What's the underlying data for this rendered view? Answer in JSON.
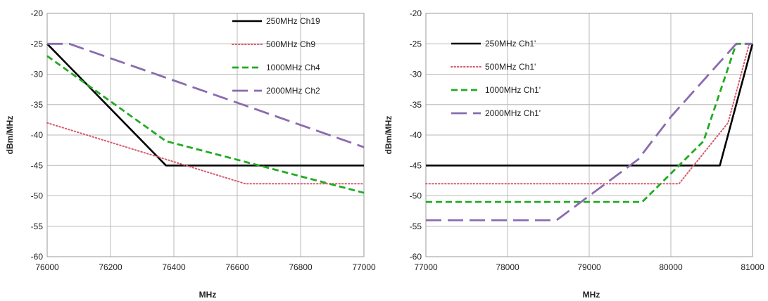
{
  "chart_data": [
    {
      "type": "line",
      "xlabel": "MHz",
      "ylabel": "dBm/MHz",
      "xlim": [
        76000,
        77000
      ],
      "ylim": [
        -60,
        -20
      ],
      "xticks": [
        76000,
        76200,
        76400,
        76600,
        76800,
        77000
      ],
      "yticks": [
        -20,
        -25,
        -30,
        -35,
        -40,
        -45,
        -50,
        -55,
        -60
      ],
      "grid": true,
      "legend_position": "top-right",
      "series": [
        {
          "name": "250MHz Ch19",
          "color": "#000000",
          "style": "solid",
          "points": [
            [
              76000,
              -25
            ],
            [
              76375,
              -45
            ],
            [
              77000,
              -45
            ]
          ]
        },
        {
          "name": "500MHz Ch9",
          "color": "#d8586a",
          "style": "dotted",
          "points": [
            [
              76000,
              -38
            ],
            [
              76375,
              -44
            ],
            [
              76625,
              -48
            ],
            [
              77000,
              -48
            ]
          ]
        },
        {
          "name": "1000MHz Ch4",
          "color": "#22aa22",
          "style": "dashed",
          "points": [
            [
              76000,
              -27
            ],
            [
              76375,
              -41
            ],
            [
              77000,
              -49.5
            ]
          ]
        },
        {
          "name": "2000MHz Ch2",
          "color": "#8a6bb0",
          "style": "longdash",
          "points": [
            [
              76000,
              -25
            ],
            [
              76070,
              -25
            ],
            [
              77000,
              -42
            ]
          ]
        }
      ]
    },
    {
      "type": "line",
      "xlabel": "MHz",
      "ylabel": "dBm/MHz",
      "xlim": [
        77000,
        81000
      ],
      "ylim": [
        -60,
        -20
      ],
      "xticks": [
        77000,
        78000,
        79000,
        80000,
        81000
      ],
      "yticks": [
        -20,
        -25,
        -30,
        -35,
        -40,
        -45,
        -50,
        -55,
        -60
      ],
      "grid": true,
      "legend_position": "top-left",
      "series": [
        {
          "name": "250MHz Ch1'",
          "color": "#000000",
          "style": "solid",
          "points": [
            [
              77000,
              -45
            ],
            [
              80600,
              -45
            ],
            [
              81000,
              -25
            ]
          ]
        },
        {
          "name": "500MHz Ch1'",
          "color": "#d8586a",
          "style": "dotted",
          "points": [
            [
              77000,
              -48
            ],
            [
              80100,
              -48
            ],
            [
              80700,
              -38
            ],
            [
              80960,
              -25
            ]
          ]
        },
        {
          "name": "1000MHz Ch1'",
          "color": "#22aa22",
          "style": "dashed",
          "points": [
            [
              77000,
              -51
            ],
            [
              79650,
              -51
            ],
            [
              80400,
              -41
            ],
            [
              80800,
              -25
            ],
            [
              81000,
              -25
            ]
          ]
        },
        {
          "name": "2000MHz Ch1'",
          "color": "#8a6bb0",
          "style": "longdash",
          "points": [
            [
              77000,
              -54
            ],
            [
              78600,
              -54
            ],
            [
              79600,
              -44
            ],
            [
              80000,
              -37
            ],
            [
              80800,
              -25
            ],
            [
              81000,
              -25
            ]
          ]
        }
      ]
    }
  ]
}
